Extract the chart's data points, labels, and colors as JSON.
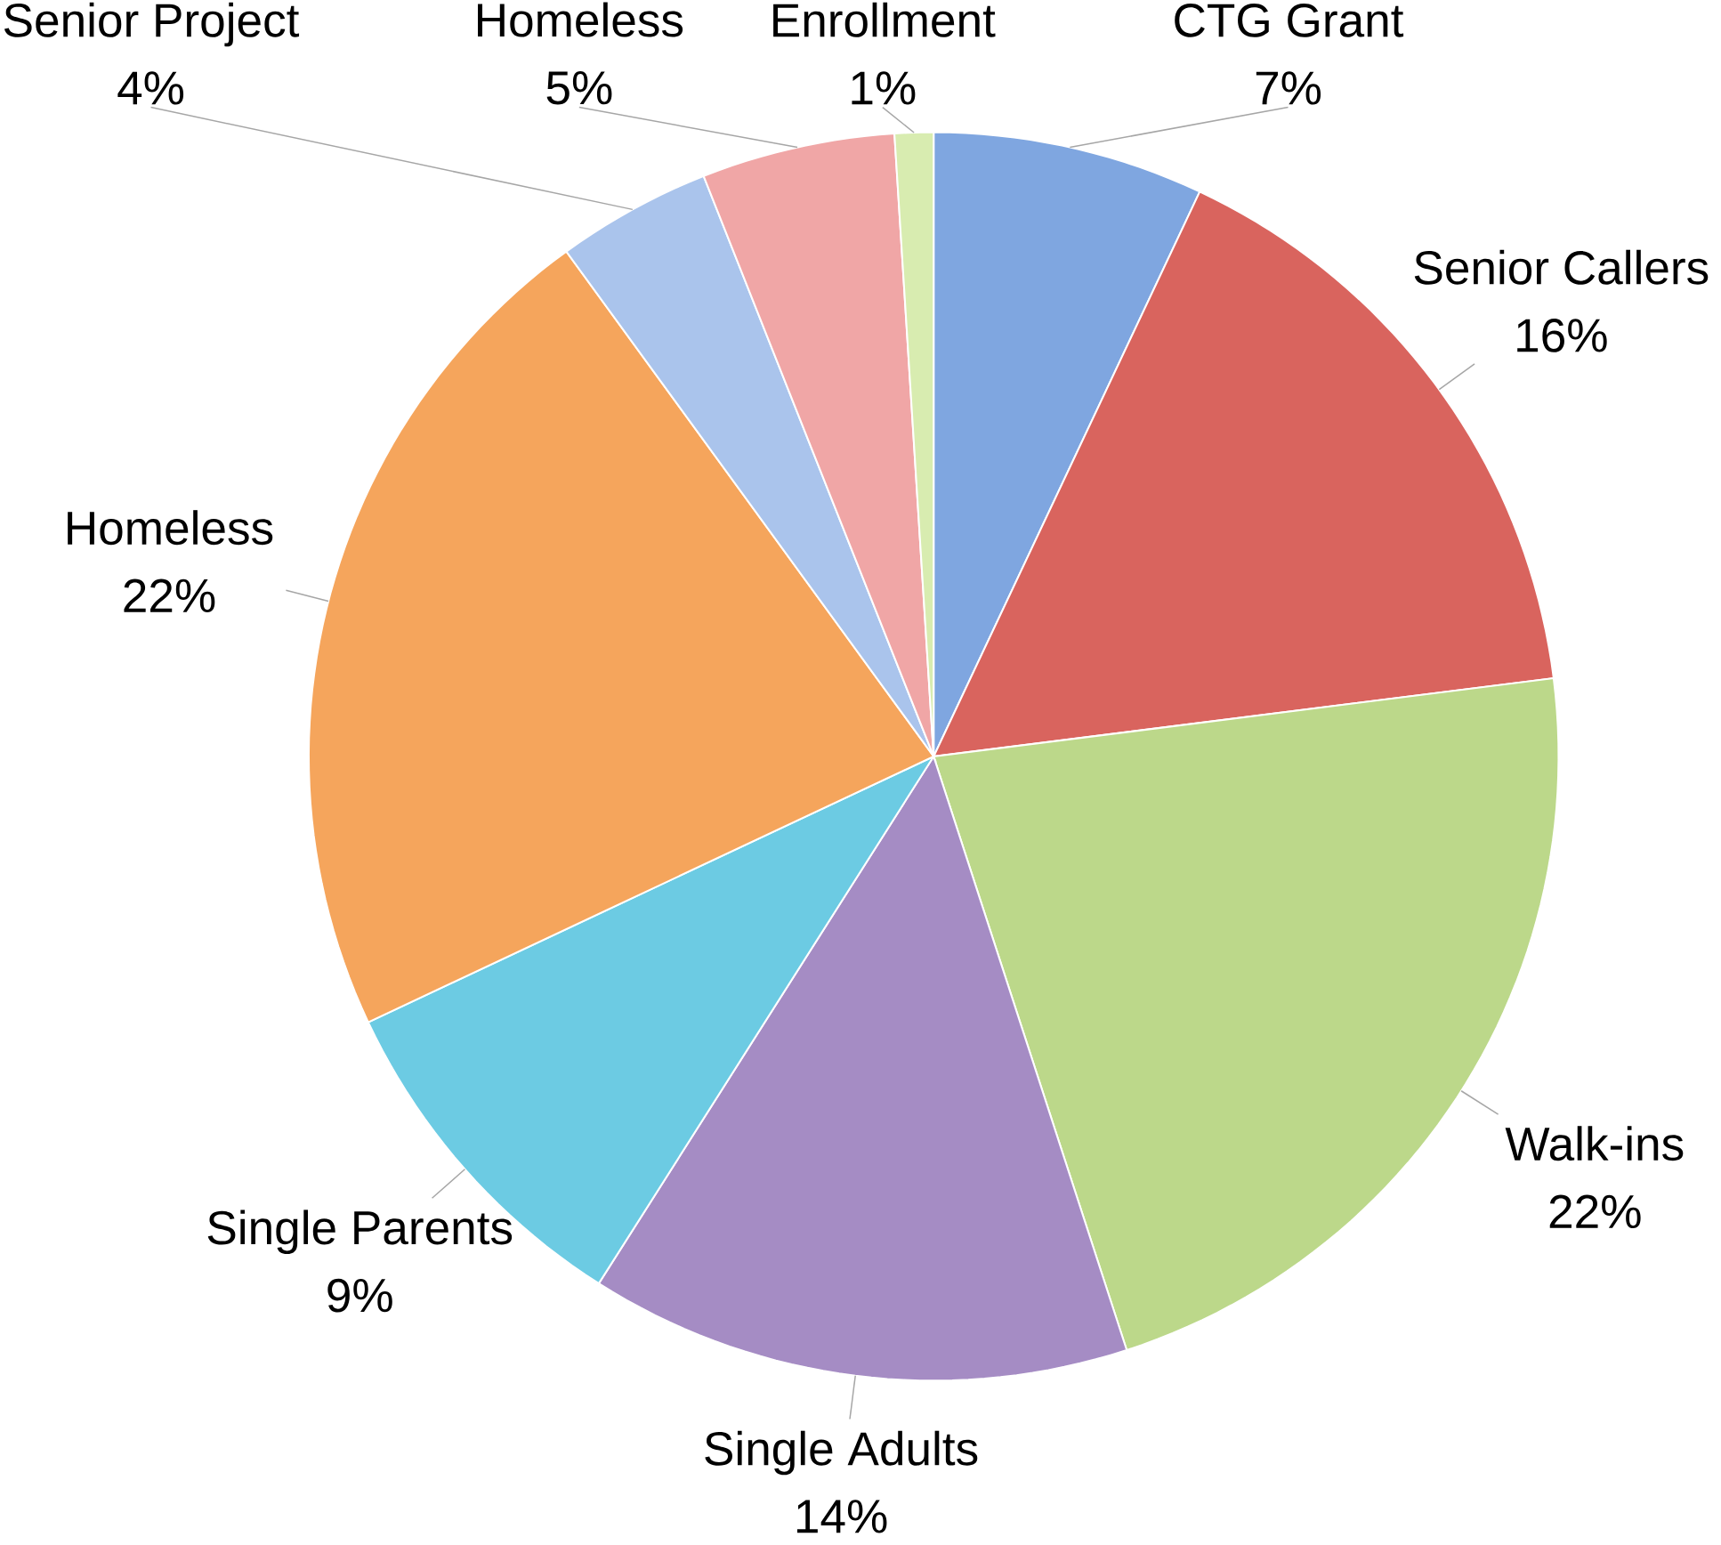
{
  "chart_data": {
    "type": "pie",
    "categories": [
      "CTG Grant",
      "Senior Callers",
      "Walk-ins",
      "Single Adults",
      "Single Parents",
      "Homeless",
      "Senior Project",
      "Homeless",
      "Enrollment"
    ],
    "values": [
      7,
      16,
      22,
      14,
      9,
      22,
      4,
      5,
      1
    ],
    "colors": [
      "#7fa6e0",
      "#d9645e",
      "#bcd88a",
      "#a58cc4",
      "#6ccbe3",
      "#f5a55c",
      "#aac4ec",
      "#f0a6a6",
      "#d8ecb0"
    ],
    "value_labels": [
      "7%",
      "16%",
      "22%",
      "14%",
      "9%",
      "22%",
      "4%",
      "5%",
      "1%"
    ]
  }
}
